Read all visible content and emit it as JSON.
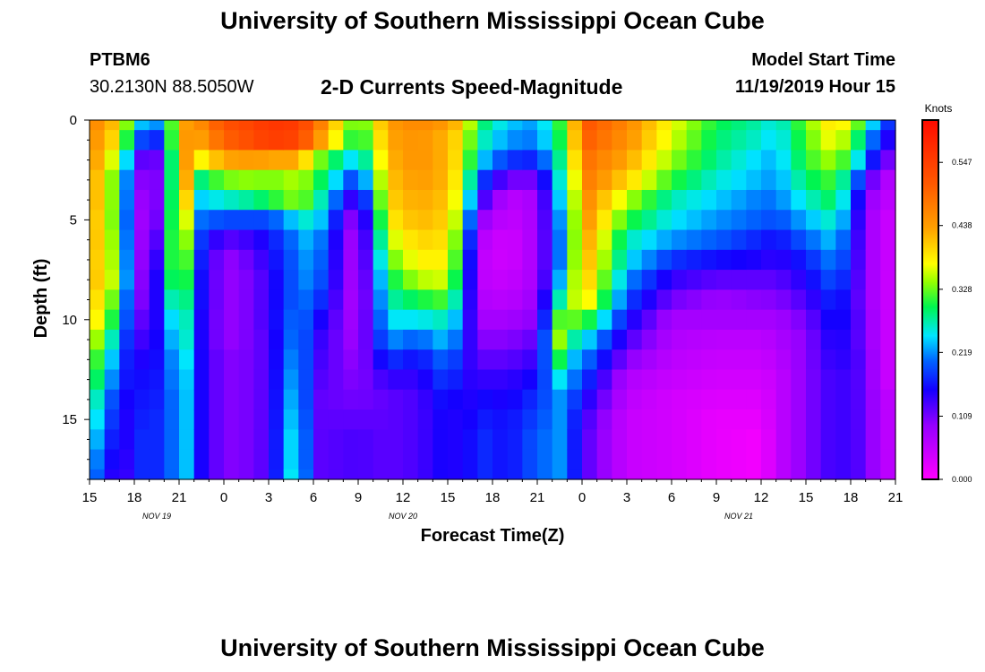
{
  "header": {
    "title": "University of Southern Mississippi Ocean Cube",
    "station_id": "PTBM6",
    "station_location": "30.2130N 88.5050W",
    "model_start_label": "Model Start Time",
    "model_start_value": "11/19/2019 Hour 15"
  },
  "footer": {
    "title": "University of Southern Mississippi Ocean Cube"
  },
  "chart_data": {
    "type": "heatmap",
    "title": "2-D Currents Speed-Magnitude",
    "xlabel": "Forecast Time(Z)",
    "ylabel": "Depth (ft)",
    "colorbar_label": "Knots",
    "x_range_hours": [
      0,
      54
    ],
    "y_range": [
      0,
      18
    ],
    "y_inverted": true,
    "x_ticks": [
      {
        "hour": 0,
        "label": "15"
      },
      {
        "hour": 3,
        "label": "18"
      },
      {
        "hour": 6,
        "label": "21"
      },
      {
        "hour": 9,
        "label": "0"
      },
      {
        "hour": 12,
        "label": "3"
      },
      {
        "hour": 15,
        "label": "6"
      },
      {
        "hour": 18,
        "label": "9"
      },
      {
        "hour": 21,
        "label": "12"
      },
      {
        "hour": 24,
        "label": "15"
      },
      {
        "hour": 27,
        "label": "18"
      },
      {
        "hour": 30,
        "label": "21"
      },
      {
        "hour": 33,
        "label": "0"
      },
      {
        "hour": 36,
        "label": "3"
      },
      {
        "hour": 39,
        "label": "6"
      },
      {
        "hour": 42,
        "label": "9"
      },
      {
        "hour": 45,
        "label": "12"
      },
      {
        "hour": 48,
        "label": "15"
      },
      {
        "hour": 51,
        "label": "18"
      },
      {
        "hour": 54,
        "label": "21"
      }
    ],
    "date_labels": [
      {
        "hour": 4.5,
        "label": "NOV 19"
      },
      {
        "hour": 21,
        "label": "NOV 20"
      },
      {
        "hour": 43.5,
        "label": "NOV 21"
      }
    ],
    "y_ticks": [
      {
        "value": 0,
        "label": "0"
      },
      {
        "value": 5,
        "label": "5"
      },
      {
        "value": 10,
        "label": "10"
      },
      {
        "value": 15,
        "label": "15"
      }
    ],
    "colorbar_range": [
      0,
      0.62
    ],
    "colorbar_ticks": [
      {
        "value": 0.0,
        "label": "0.000"
      },
      {
        "value": 0.109,
        "label": "0.109"
      },
      {
        "value": 0.219,
        "label": "0.219"
      },
      {
        "value": 0.328,
        "label": "0.328"
      },
      {
        "value": 0.438,
        "label": "0.438"
      },
      {
        "value": 0.547,
        "label": "0.547"
      }
    ],
    "depths": [
      0,
      0.5,
      1.5,
      2.5,
      3.5,
      4.5,
      5.5,
      6.5,
      7.5,
      8.5,
      9.5,
      10.5,
      11.5,
      12.5,
      13.5,
      14.5,
      15.5,
      16.5,
      17.5,
      18
    ],
    "keyframe_hours": [
      0,
      2,
      3,
      4,
      5,
      6,
      6.7,
      7.3,
      9,
      11,
      12,
      14,
      15,
      18,
      20,
      22,
      24,
      25,
      26,
      28,
      30,
      31.5,
      32.2,
      33,
      36,
      39,
      42,
      45,
      46,
      48,
      50,
      52,
      53,
      54
    ],
    "profiles": [
      [
        0.47,
        0.46,
        0.46,
        0.45,
        0.45,
        0.44,
        0.44,
        0.43,
        0.43,
        0.42,
        0.41,
        0.38,
        0.35,
        0.33,
        0.3,
        0.28,
        0.26,
        0.24,
        0.23,
        0.22
      ],
      [
        0.4,
        0.38,
        0.33,
        0.3,
        0.3,
        0.3,
        0.31,
        0.32,
        0.33,
        0.3,
        0.27,
        0.23,
        0.2,
        0.18,
        0.16,
        0.15,
        0.14,
        0.13,
        0.12,
        0.12
      ],
      [
        0.27,
        0.23,
        0.16,
        0.13,
        0.12,
        0.11,
        0.11,
        0.11,
        0.11,
        0.11,
        0.12,
        0.13,
        0.14,
        0.15,
        0.15,
        0.15,
        0.16,
        0.16,
        0.16,
        0.16
      ],
      [
        0.2,
        0.15,
        0.08,
        0.07,
        0.06,
        0.06,
        0.07,
        0.08,
        0.09,
        0.1,
        0.12,
        0.14,
        0.16,
        0.17,
        0.18,
        0.19,
        0.19,
        0.19,
        0.19,
        0.19
      ],
      [
        0.24,
        0.2,
        0.15,
        0.14,
        0.15,
        0.16,
        0.18,
        0.2,
        0.21,
        0.2,
        0.18,
        0.17,
        0.16,
        0.16,
        0.16,
        0.16,
        0.16,
        0.16,
        0.16,
        0.16
      ],
      [
        0.4,
        0.42,
        0.43,
        0.44,
        0.44,
        0.44,
        0.43,
        0.41,
        0.38,
        0.34,
        0.31,
        0.29,
        0.27,
        0.26,
        0.25,
        0.25,
        0.25,
        0.25,
        0.25,
        0.25
      ],
      [
        0.45,
        0.45,
        0.44,
        0.42,
        0.38,
        0.33,
        0.3,
        0.28,
        0.27,
        0.26,
        0.25,
        0.25,
        0.24,
        0.23,
        0.23,
        0.23,
        0.23,
        0.23,
        0.23,
        0.23
      ],
      [
        0.45,
        0.43,
        0.37,
        0.28,
        0.24,
        0.21,
        0.19,
        0.18,
        0.17,
        0.17,
        0.16,
        0.16,
        0.16,
        0.16,
        0.16,
        0.16,
        0.16,
        0.16,
        0.16,
        0.16
      ],
      [
        0.52,
        0.5,
        0.43,
        0.33,
        0.26,
        0.19,
        0.12,
        0.09,
        0.09,
        0.09,
        0.09,
        0.09,
        0.1,
        0.1,
        0.1,
        0.1,
        0.1,
        0.1,
        0.1,
        0.1
      ],
      [
        0.54,
        0.53,
        0.44,
        0.34,
        0.28,
        0.19,
        0.14,
        0.12,
        0.11,
        0.11,
        0.11,
        0.11,
        0.11,
        0.11,
        0.11,
        0.11,
        0.11,
        0.11,
        0.11,
        0.11
      ],
      [
        0.56,
        0.55,
        0.43,
        0.33,
        0.3,
        0.19,
        0.16,
        0.15,
        0.14,
        0.14,
        0.14,
        0.13,
        0.13,
        0.13,
        0.13,
        0.13,
        0.13,
        0.13,
        0.13,
        0.13
      ],
      [
        0.55,
        0.54,
        0.43,
        0.35,
        0.34,
        0.25,
        0.22,
        0.21,
        0.21,
        0.21,
        0.22,
        0.23,
        0.24,
        0.25,
        0.26,
        0.27,
        0.28,
        0.28,
        0.29,
        0.29
      ],
      [
        0.5,
        0.47,
        0.35,
        0.32,
        0.3,
        0.27,
        0.24,
        0.23,
        0.22,
        0.2,
        0.17,
        0.15,
        0.14,
        0.13,
        0.12,
        0.12,
        0.12,
        0.12,
        0.12,
        0.12
      ],
      [
        0.3,
        0.28,
        0.23,
        0.17,
        0.11,
        0.07,
        0.06,
        0.06,
        0.06,
        0.06,
        0.07,
        0.08,
        0.09,
        0.1,
        0.11,
        0.12,
        0.13,
        0.13,
        0.13,
        0.13
      ],
      [
        0.44,
        0.43,
        0.42,
        0.41,
        0.4,
        0.38,
        0.35,
        0.32,
        0.29,
        0.27,
        0.25,
        0.22,
        0.18,
        0.14,
        0.12,
        0.12,
        0.12,
        0.12,
        0.12,
        0.12
      ],
      [
        0.46,
        0.45,
        0.45,
        0.44,
        0.43,
        0.42,
        0.4,
        0.38,
        0.35,
        0.3,
        0.25,
        0.2,
        0.16,
        0.14,
        0.13,
        0.13,
        0.13,
        0.13,
        0.13,
        0.13
      ],
      [
        0.44,
        0.42,
        0.42,
        0.42,
        0.41,
        0.4,
        0.39,
        0.38,
        0.36,
        0.32,
        0.27,
        0.24,
        0.21,
        0.19,
        0.17,
        0.16,
        0.16,
        0.16,
        0.16,
        0.16
      ],
      [
        0.4,
        0.38,
        0.37,
        0.35,
        0.33,
        0.31,
        0.28,
        0.26,
        0.24,
        0.22,
        0.2,
        0.18,
        0.16,
        0.15,
        0.14,
        0.14,
        0.14,
        0.14,
        0.14,
        0.14
      ],
      [
        0.3,
        0.28,
        0.25,
        0.2,
        0.15,
        0.1,
        0.07,
        0.06,
        0.06,
        0.07,
        0.08,
        0.1,
        0.12,
        0.14,
        0.16,
        0.17,
        0.18,
        0.18,
        0.18,
        0.18
      ],
      [
        0.24,
        0.22,
        0.18,
        0.11,
        0.06,
        0.05,
        0.04,
        0.04,
        0.05,
        0.06,
        0.08,
        0.1,
        0.12,
        0.14,
        0.15,
        0.16,
        0.16,
        0.16,
        0.16,
        0.16
      ],
      [
        0.22,
        0.21,
        0.17,
        0.11,
        0.08,
        0.08,
        0.08,
        0.08,
        0.08,
        0.09,
        0.1,
        0.12,
        0.14,
        0.16,
        0.18,
        0.19,
        0.2,
        0.2,
        0.2,
        0.2
      ],
      [
        0.31,
        0.3,
        0.28,
        0.26,
        0.24,
        0.22,
        0.21,
        0.21,
        0.23,
        0.27,
        0.32,
        0.34,
        0.3,
        0.25,
        0.22,
        0.22,
        0.22,
        0.22,
        0.22,
        0.22
      ],
      [
        0.36,
        0.35,
        0.33,
        0.3,
        0.28,
        0.27,
        0.27,
        0.28,
        0.3,
        0.32,
        0.32,
        0.28,
        0.24,
        0.22,
        0.2,
        0.19,
        0.19,
        0.19,
        0.19,
        0.19
      ],
      [
        0.52,
        0.51,
        0.49,
        0.48,
        0.47,
        0.46,
        0.45,
        0.44,
        0.43,
        0.41,
        0.33,
        0.26,
        0.22,
        0.19,
        0.16,
        0.14,
        0.13,
        0.13,
        0.13,
        0.13
      ],
      [
        0.46,
        0.45,
        0.43,
        0.4,
        0.35,
        0.31,
        0.27,
        0.25,
        0.22,
        0.19,
        0.16,
        0.13,
        0.1,
        0.07,
        0.06,
        0.05,
        0.05,
        0.05,
        0.05,
        0.05
      ],
      [
        0.37,
        0.36,
        0.34,
        0.31,
        0.27,
        0.25,
        0.22,
        0.18,
        0.14,
        0.11,
        0.08,
        0.07,
        0.06,
        0.05,
        0.04,
        0.04,
        0.04,
        0.04,
        0.04,
        0.04
      ],
      [
        0.3,
        0.29,
        0.28,
        0.26,
        0.24,
        0.22,
        0.2,
        0.16,
        0.12,
        0.09,
        0.08,
        0.06,
        0.05,
        0.04,
        0.03,
        0.02,
        0.02,
        0.02,
        0.02,
        0.02
      ],
      [
        0.27,
        0.26,
        0.24,
        0.23,
        0.21,
        0.2,
        0.17,
        0.15,
        0.12,
        0.1,
        0.08,
        0.06,
        0.05,
        0.04,
        0.03,
        0.02,
        0.01,
        0.01,
        0.01,
        0.01
      ],
      [
        0.25,
        0.24,
        0.23,
        0.22,
        0.21,
        0.19,
        0.16,
        0.14,
        0.12,
        0.1,
        0.08,
        0.07,
        0.06,
        0.05,
        0.05,
        0.05,
        0.05,
        0.05,
        0.05,
        0.05
      ],
      [
        0.33,
        0.32,
        0.31,
        0.29,
        0.26,
        0.23,
        0.2,
        0.17,
        0.15,
        0.13,
        0.11,
        0.1,
        0.1,
        0.1,
        0.1,
        0.1,
        0.1,
        0.1,
        0.1,
        0.1
      ],
      [
        0.4,
        0.38,
        0.35,
        0.32,
        0.3,
        0.27,
        0.24,
        0.22,
        0.2,
        0.18,
        0.17,
        0.16,
        0.15,
        0.14,
        0.14,
        0.14,
        0.14,
        0.14,
        0.14,
        0.14
      ],
      [
        0.3,
        0.26,
        0.22,
        0.15,
        0.11,
        0.1,
        0.1,
        0.1,
        0.1,
        0.1,
        0.11,
        0.11,
        0.12,
        0.12,
        0.12,
        0.12,
        0.12,
        0.12,
        0.12,
        0.12
      ],
      [
        0.18,
        0.15,
        0.11,
        0.07,
        0.06,
        0.05,
        0.05,
        0.05,
        0.05,
        0.05,
        0.05,
        0.05,
        0.05,
        0.05,
        0.06,
        0.06,
        0.06,
        0.06,
        0.06,
        0.06
      ],
      [
        0.18,
        0.15,
        0.11,
        0.07,
        0.06,
        0.05,
        0.05,
        0.05,
        0.05,
        0.05,
        0.05,
        0.05,
        0.05,
        0.05,
        0.06,
        0.06,
        0.06,
        0.06,
        0.06,
        0.06
      ]
    ]
  }
}
